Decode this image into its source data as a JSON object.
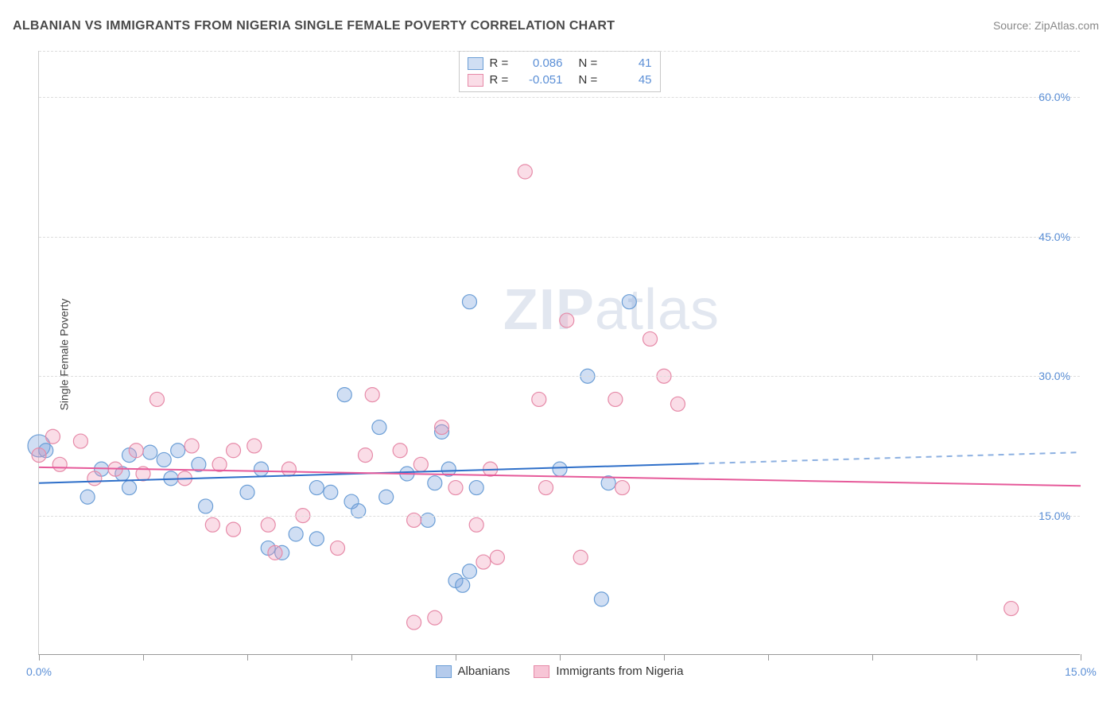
{
  "title": "ALBANIAN VS IMMIGRANTS FROM NIGERIA SINGLE FEMALE POVERTY CORRELATION CHART",
  "source": "Source: ZipAtlas.com",
  "watermark_bold": "ZIP",
  "watermark_rest": "atlas",
  "y_axis_label": "Single Female Poverty",
  "chart": {
    "type": "scatter",
    "xlim": [
      0,
      15
    ],
    "ylim": [
      0,
      65
    ],
    "x_ticks": [
      0,
      1.5,
      3,
      4.5,
      6,
      7.5,
      9,
      10.5,
      12,
      13.5,
      15
    ],
    "x_tick_labels": {
      "0": "0.0%",
      "15": "15.0%"
    },
    "y_gridlines": [
      15,
      30,
      45,
      60,
      65
    ],
    "y_tick_labels": {
      "15": "15.0%",
      "30": "30.0%",
      "45": "45.0%",
      "60": "60.0%"
    },
    "background_color": "#ffffff",
    "grid_color": "#dddddd",
    "series": [
      {
        "name": "Albanians",
        "color_fill": "rgba(120,160,220,0.35)",
        "color_stroke": "#6b9ed6",
        "marker_radius": 9,
        "R": "0.086",
        "N": "41",
        "trend": {
          "x1": 0,
          "y1": 18.5,
          "x2": 15,
          "y2": 21.8,
          "solid_until_x": 9.5,
          "stroke": "#2e6fc9",
          "stroke_width": 2
        },
        "points": [
          {
            "x": 0.0,
            "y": 22.5,
            "r": 14
          },
          {
            "x": 0.1,
            "y": 22.0
          },
          {
            "x": 0.7,
            "y": 17.0
          },
          {
            "x": 0.9,
            "y": 20.0
          },
          {
            "x": 1.2,
            "y": 19.5
          },
          {
            "x": 1.3,
            "y": 21.5
          },
          {
            "x": 1.3,
            "y": 18.0
          },
          {
            "x": 1.6,
            "y": 21.8
          },
          {
            "x": 1.8,
            "y": 21.0
          },
          {
            "x": 1.9,
            "y": 19.0
          },
          {
            "x": 2.0,
            "y": 22.0
          },
          {
            "x": 2.3,
            "y": 20.5
          },
          {
            "x": 2.4,
            "y": 16.0
          },
          {
            "x": 3.0,
            "y": 17.5
          },
          {
            "x": 3.2,
            "y": 20.0
          },
          {
            "x": 3.3,
            "y": 11.5
          },
          {
            "x": 3.5,
            "y": 11.0
          },
          {
            "x": 3.7,
            "y": 13.0
          },
          {
            "x": 4.0,
            "y": 12.5
          },
          {
            "x": 4.0,
            "y": 18.0
          },
          {
            "x": 4.2,
            "y": 17.5
          },
          {
            "x": 4.4,
            "y": 28.0
          },
          {
            "x": 4.5,
            "y": 16.5
          },
          {
            "x": 4.6,
            "y": 15.5
          },
          {
            "x": 4.9,
            "y": 24.5
          },
          {
            "x": 5.0,
            "y": 17.0
          },
          {
            "x": 5.3,
            "y": 19.5
          },
          {
            "x": 5.6,
            "y": 14.5
          },
          {
            "x": 5.7,
            "y": 18.5
          },
          {
            "x": 5.8,
            "y": 24.0
          },
          {
            "x": 5.9,
            "y": 20.0
          },
          {
            "x": 6.0,
            "y": 8.0
          },
          {
            "x": 6.1,
            "y": 7.5
          },
          {
            "x": 6.2,
            "y": 38.0
          },
          {
            "x": 6.2,
            "y": 9.0
          },
          {
            "x": 6.3,
            "y": 18.0
          },
          {
            "x": 7.5,
            "y": 20.0
          },
          {
            "x": 7.9,
            "y": 30.0
          },
          {
            "x": 8.1,
            "y": 6.0
          },
          {
            "x": 8.5,
            "y": 38.0
          },
          {
            "x": 8.2,
            "y": 18.5
          }
        ]
      },
      {
        "name": "Immigrants from Nigeria",
        "color_fill": "rgba(240,150,180,0.32)",
        "color_stroke": "#e68aa8",
        "marker_radius": 9,
        "R": "-0.051",
        "N": "45",
        "trend": {
          "x1": 0,
          "y1": 20.2,
          "x2": 15,
          "y2": 18.2,
          "solid_until_x": 15,
          "stroke": "#e65a9a",
          "stroke_width": 2
        },
        "points": [
          {
            "x": 0.0,
            "y": 21.5
          },
          {
            "x": 0.2,
            "y": 23.5
          },
          {
            "x": 0.3,
            "y": 20.5
          },
          {
            "x": 0.6,
            "y": 23.0
          },
          {
            "x": 0.8,
            "y": 19.0
          },
          {
            "x": 1.1,
            "y": 20.0
          },
          {
            "x": 1.4,
            "y": 22.0
          },
          {
            "x": 1.5,
            "y": 19.5
          },
          {
            "x": 1.7,
            "y": 27.5
          },
          {
            "x": 2.1,
            "y": 19.0
          },
          {
            "x": 2.2,
            "y": 22.5
          },
          {
            "x": 2.5,
            "y": 14.0
          },
          {
            "x": 2.6,
            "y": 20.5
          },
          {
            "x": 2.8,
            "y": 13.5
          },
          {
            "x": 2.8,
            "y": 22.0
          },
          {
            "x": 3.1,
            "y": 22.5
          },
          {
            "x": 3.3,
            "y": 14.0
          },
          {
            "x": 3.4,
            "y": 11.0
          },
          {
            "x": 3.6,
            "y": 20.0
          },
          {
            "x": 3.8,
            "y": 15.0
          },
          {
            "x": 4.3,
            "y": 11.5
          },
          {
            "x": 4.7,
            "y": 21.5
          },
          {
            "x": 4.8,
            "y": 28.0
          },
          {
            "x": 5.2,
            "y": 22.0
          },
          {
            "x": 5.4,
            "y": 3.5
          },
          {
            "x": 5.4,
            "y": 14.5
          },
          {
            "x": 5.5,
            "y": 20.5
          },
          {
            "x": 5.7,
            "y": 4.0
          },
          {
            "x": 5.8,
            "y": 24.5
          },
          {
            "x": 6.0,
            "y": 18.0
          },
          {
            "x": 6.3,
            "y": 14.0
          },
          {
            "x": 6.4,
            "y": 10.0
          },
          {
            "x": 6.5,
            "y": 20.0
          },
          {
            "x": 6.6,
            "y": 10.5
          },
          {
            "x": 7.0,
            "y": 52.0
          },
          {
            "x": 7.2,
            "y": 27.5
          },
          {
            "x": 7.3,
            "y": 18.0
          },
          {
            "x": 7.6,
            "y": 36.0
          },
          {
            "x": 7.8,
            "y": 10.5
          },
          {
            "x": 8.3,
            "y": 27.5
          },
          {
            "x": 8.4,
            "y": 18.0
          },
          {
            "x": 8.8,
            "y": 34.0
          },
          {
            "x": 9.0,
            "y": 30.0
          },
          {
            "x": 9.2,
            "y": 27.0
          },
          {
            "x": 14.0,
            "y": 5.0
          }
        ]
      }
    ]
  },
  "legend_bottom": [
    {
      "label": "Albanians",
      "fill": "rgba(120,160,220,0.55)",
      "stroke": "#6b9ed6"
    },
    {
      "label": "Immigrants from Nigeria",
      "fill": "rgba(240,150,180,0.55)",
      "stroke": "#e68aa8"
    }
  ],
  "legend_top_labels": {
    "R": "R =",
    "N": "N ="
  }
}
